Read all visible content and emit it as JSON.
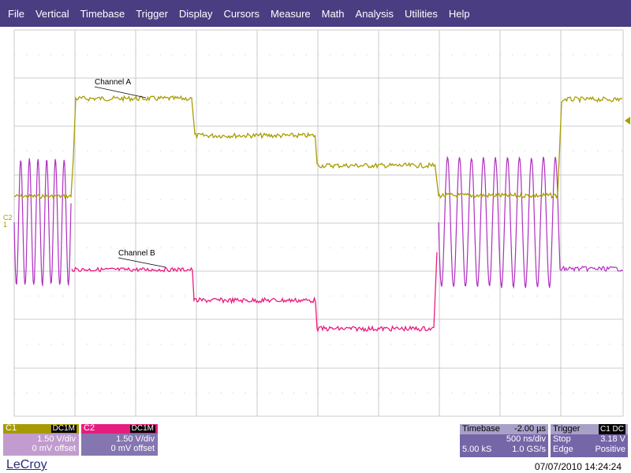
{
  "menu": [
    "File",
    "Vertical",
    "Timebase",
    "Trigger",
    "Display",
    "Cursors",
    "Measure",
    "Math",
    "Analysis",
    "Utilities",
    "Help"
  ],
  "traces": {
    "channel_a_label": "Channel A",
    "channel_b_label": "Channel B",
    "side_label": "C2",
    "side_label_2": "1",
    "colors": {
      "c1": "#a89d00",
      "c2": "#ea1b80",
      "mix": "#b02fc0"
    }
  },
  "c1": {
    "name": "C1",
    "coupling": "DC1M",
    "vdiv": "1.50 V/div",
    "offset": "0 mV offset"
  },
  "c2": {
    "name": "C2",
    "coupling": "DC1M",
    "vdiv": "1.50 V/div",
    "offset": "0 mV offset"
  },
  "timebase": {
    "label": "Timebase",
    "delay": "-2.00 µs",
    "tdiv": "500 ns/div",
    "samples": "5.00 kS",
    "rate": "1.0 GS/s"
  },
  "trigger": {
    "label": "Trigger",
    "source_badge": "C1 DC",
    "mode": "Stop",
    "level": "3.18 V",
    "type": "Edge",
    "slope": "Positive"
  },
  "brand": "LeCroy",
  "datetime": "07/07/2010 14:24:24"
}
